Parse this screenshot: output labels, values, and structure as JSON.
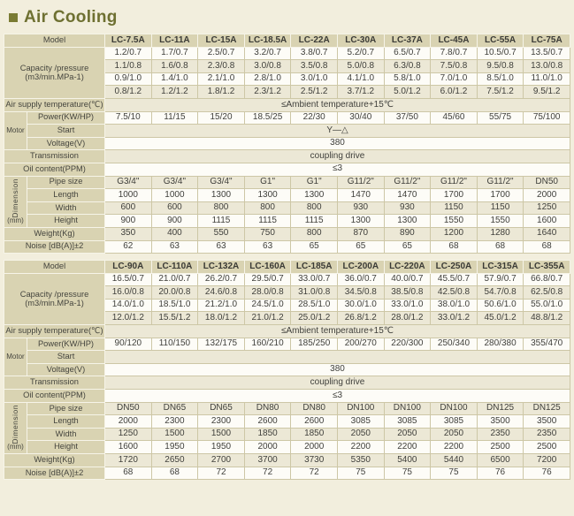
{
  "page": {
    "title": "Air Cooling",
    "colors": {
      "accent_olive": "#6e7031",
      "label_khaki": "#d9d3b2",
      "row_beige": "#ece8d6",
      "row_white": "#fdfcf7",
      "background": "#f2eedd"
    }
  },
  "labels": {
    "model": "Model",
    "capacity_1": "Capacity /pressure",
    "capacity_2": "(m3/min.MPa-1)",
    "air_supply": "Air supply temperature(℃)",
    "motor": "Motor",
    "power": "Power(KW/HP)",
    "start": "Start",
    "voltage": "Voltage(V)",
    "transmission": "Transmission",
    "oil": "Oil content(PPM)",
    "dimension": "Dimension",
    "dimension_unit": "(mm)",
    "pipe": "Pipe size",
    "length": "Length",
    "width": "Width",
    "height": "Height",
    "weight": "Weight(Kg)",
    "noise": "Noise [dB(A)]±2"
  },
  "tables": [
    {
      "models": [
        "LC-7.5A",
        "LC-11A",
        "LC-15A",
        "LC-18.5A",
        "LC-22A",
        "LC-30A",
        "LC-37A",
        "LC-45A",
        "LC-55A",
        "LC-75A"
      ],
      "capacity_rows": [
        [
          "1.2/0.7",
          "1.7/0.7",
          "2.5/0.7",
          "3.2/0.7",
          "3.8/0.7",
          "5.2/0.7",
          "6.5/0.7",
          "7.8/0.7",
          "10.5/0.7",
          "13.5/0.7"
        ],
        [
          "1.1/0.8",
          "1.6/0.8",
          "2.3/0.8",
          "3.0/0.8",
          "3.5/0.8",
          "5.0/0.8",
          "6.3/0.8",
          "7.5/0.8",
          "9.5/0.8",
          "13.0/0.8"
        ],
        [
          "0.9/1.0",
          "1.4/1.0",
          "2.1/1.0",
          "2.8/1.0",
          "3.0/1.0",
          "4.1/1.0",
          "5.8/1.0",
          "7.0/1.0",
          "8.5/1.0",
          "11.0/1.0"
        ],
        [
          "0.8/1.2",
          "1.2/1.2",
          "1.8/1.2",
          "2.3/1.2",
          "2.5/1.2",
          "3.7/1.2",
          "5.0/1.2",
          "6.0/1.2",
          "7.5/1.2",
          "9.5/1.2"
        ]
      ],
      "air_supply_value": "≤Ambient temperature+15℃",
      "power_values": [
        "7.5/10",
        "11/15",
        "15/20",
        "18.5/25",
        "22/30",
        "30/40",
        "37/50",
        "45/60",
        "55/75",
        "75/100"
      ],
      "start_value": "Y—△",
      "voltage_value": "380",
      "transmission_value": "coupling drive",
      "oil_value": "≤3",
      "pipe_values": [
        "G3/4\"",
        "G3/4\"",
        "G3/4\"",
        "G1\"",
        "G1\"",
        "G11/2\"",
        "G11/2\"",
        "G11/2\"",
        "G11/2\"",
        "DN50"
      ],
      "length_values": [
        "1000",
        "1000",
        "1300",
        "1300",
        "1300",
        "1470",
        "1470",
        "1700",
        "1700",
        "2000"
      ],
      "width_values": [
        "600",
        "600",
        "800",
        "800",
        "800",
        "930",
        "930",
        "1150",
        "1150",
        "1250"
      ],
      "height_values": [
        "900",
        "900",
        "1115",
        "1115",
        "1115",
        "1300",
        "1300",
        "1550",
        "1550",
        "1600"
      ],
      "weight_values": [
        "350",
        "400",
        "550",
        "750",
        "800",
        "870",
        "890",
        "1200",
        "1280",
        "1640"
      ],
      "noise_values": [
        "62",
        "63",
        "63",
        "63",
        "65",
        "65",
        "65",
        "68",
        "68",
        "68"
      ]
    },
    {
      "models": [
        "LC-90A",
        "LC-110A",
        "LC-132A",
        "LC-160A",
        "LC-185A",
        "LC-200A",
        "LC-220A",
        "LC-250A",
        "LC-315A",
        "LC-355A"
      ],
      "capacity_rows": [
        [
          "16.5/0.7",
          "21.0/0.7",
          "26.2/0.7",
          "29.5/0.7",
          "33.0/0.7",
          "36.0/0.7",
          "40.0/0.7",
          "45.5/0.7",
          "57.9/0.7",
          "66.8/0.7"
        ],
        [
          "16.0/0.8",
          "20.0/0.8",
          "24.6/0.8",
          "28.0/0.8",
          "31.0/0.8",
          "34.5/0.8",
          "38.5/0.8",
          "42.5/0.8",
          "54.7/0.8",
          "62.5/0.8"
        ],
        [
          "14.0/1.0",
          "18.5/1.0",
          "21.2/1.0",
          "24.5/1.0",
          "28.5/1.0",
          "30.0/1.0",
          "33.0/1.0",
          "38.0/1.0",
          "50.6/1.0",
          "55.0/1.0"
        ],
        [
          "12.0/1.2",
          "15.5/1.2",
          "18.0/1.2",
          "21.0/1.2",
          "25.0/1.2",
          "26.8/1.2",
          "28.0/1.2",
          "33.0/1.2",
          "45.0/1.2",
          "48.8/1.2"
        ]
      ],
      "air_supply_value": "≤Ambient temperature+15℃",
      "power_values": [
        "90/120",
        "110/150",
        "132/175",
        "160/210",
        "185/250",
        "200/270",
        "220/300",
        "250/340",
        "280/380",
        "355/470"
      ],
      "start_value": "",
      "voltage_value": "380",
      "transmission_value": "coupling drive",
      "oil_value": "≤3",
      "pipe_values": [
        "DN50",
        "DN65",
        "DN65",
        "DN80",
        "DN80",
        "DN100",
        "DN100",
        "DN100",
        "DN125",
        "DN125"
      ],
      "length_values": [
        "2000",
        "2300",
        "2300",
        "2600",
        "2600",
        "3085",
        "3085",
        "3085",
        "3500",
        "3500"
      ],
      "width_values": [
        "1250",
        "1500",
        "1500",
        "1850",
        "1850",
        "2050",
        "2050",
        "2050",
        "2350",
        "2350"
      ],
      "height_values": [
        "1600",
        "1950",
        "1950",
        "2000",
        "2000",
        "2200",
        "2200",
        "2200",
        "2500",
        "2500"
      ],
      "weight_values": [
        "1720",
        "2650",
        "2700",
        "3700",
        "3730",
        "5350",
        "5400",
        "5440",
        "6500",
        "7200"
      ],
      "noise_values": [
        "68",
        "68",
        "72",
        "72",
        "72",
        "75",
        "75",
        "75",
        "76",
        "76"
      ]
    }
  ]
}
